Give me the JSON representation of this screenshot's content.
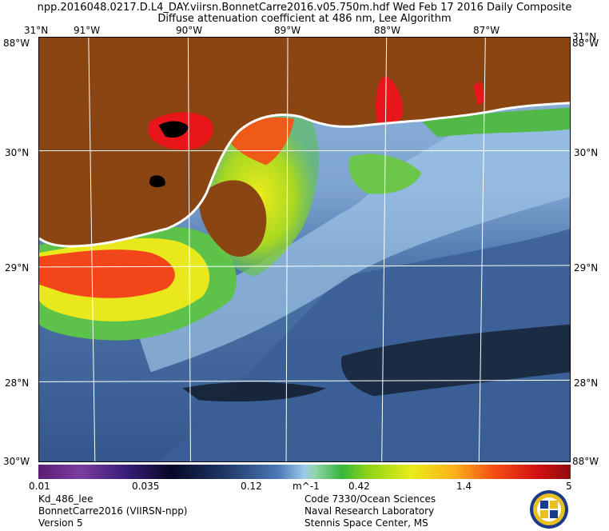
{
  "header": {
    "title_line1": "npp.2016048.0217.D.L4_DAY.viirsn.BonnetCarre2016.v05.750m.hdf    Wed Feb 17 2016 Daily Composite",
    "title_line2": "Diffuse attenuation coefficient at 486 nm, Lee Algorithm"
  },
  "map": {
    "top_lon_labels": [
      "91°W",
      "90°W",
      "89°W",
      "88°W",
      "87°W"
    ],
    "corner_labels": {
      "top_left": "31°N",
      "top_right": "31°N",
      "bottom_left": "30°W",
      "bottom_right": "88°W",
      "top_left_lon": "88°W",
      "top_right_lon": "88°W",
      "bottom_left_lat": "30°W",
      "bottom_right_lat": "88°W"
    },
    "left_lat_labels": [
      "30°N",
      "29°N",
      "28°N"
    ],
    "right_lat_labels": [
      "30°N",
      "29°N",
      "28°N"
    ],
    "colors": {
      "land": "#8b4513",
      "coast": "#ffffff",
      "gulf_deep": "#3a5f95",
      "gulf_mid": "#8eb6de",
      "turbid_green": "#4cb94a",
      "turbid_yellow": "#e8ec1a",
      "turbid_red": "#e8161a",
      "cloud": "#000000"
    }
  },
  "colorbar": {
    "ticks": [
      "0.01",
      "0.035",
      "0.12",
      "m^-1",
      "0.42",
      "1.4",
      "5"
    ]
  },
  "footer": {
    "left": [
      "Kd_486_lee",
      "BonnetCarre2016 (VIIRSN-npp)",
      "Version 5"
    ],
    "right": [
      "Code 7330/Ocean Sciences",
      "Naval Research Laboratory",
      "Stennis Space Center, MS"
    ],
    "logo_text": "NRL"
  }
}
